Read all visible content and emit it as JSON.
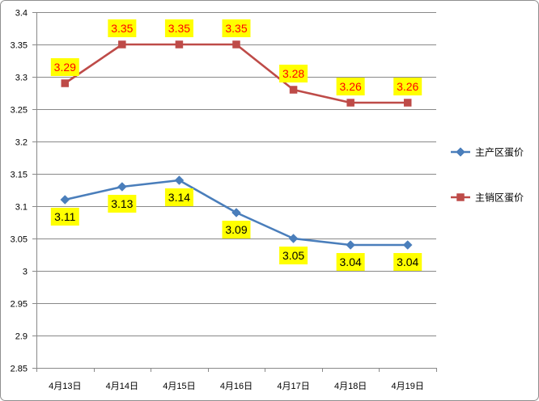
{
  "chart_data": {
    "type": "line",
    "categories": [
      "4月13日",
      "4月14日",
      "4月15日",
      "4月16日",
      "4月17日",
      "4月18日",
      "4月19日"
    ],
    "series": [
      {
        "name": "主产区蛋价",
        "values": [
          3.11,
          3.13,
          3.14,
          3.09,
          3.05,
          3.04,
          3.04
        ],
        "color": "#4a7ebb",
        "marker": "diamond",
        "label_position": "below",
        "label_color": "#000000"
      },
      {
        "name": "主销区蛋价",
        "values": [
          3.29,
          3.35,
          3.35,
          3.35,
          3.28,
          3.26,
          3.26
        ],
        "color": "#be4b48",
        "marker": "square",
        "label_position": "above",
        "label_color": "#ff0000"
      }
    ],
    "ylim": [
      2.85,
      3.4
    ],
    "yticks": [
      2.85,
      2.9,
      2.95,
      3,
      3.05,
      3.1,
      3.15,
      3.2,
      3.25,
      3.3,
      3.35,
      3.4
    ],
    "grid": true,
    "legend": "right",
    "data_labels": true,
    "data_label_background": "#ffff00",
    "gridline_color": "#898989"
  }
}
